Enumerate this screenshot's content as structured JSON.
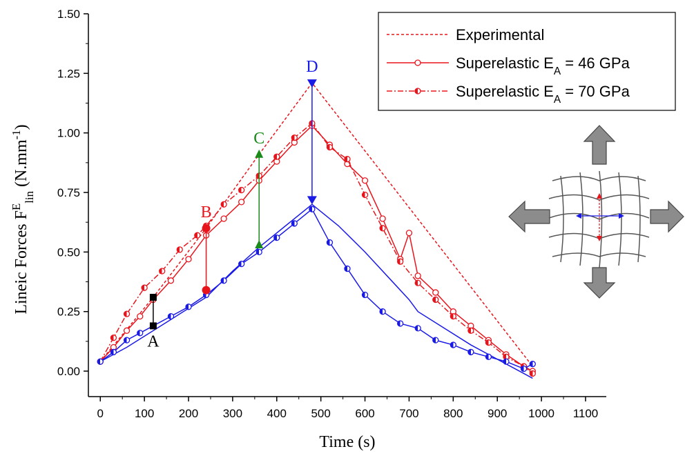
{
  "chart_data": {
    "type": "line",
    "xlabel": "Time (s)",
    "ylabel": "Lineic Forces F^{E}_{lin} (N.mm^{-1})",
    "xlim": [
      -27,
      1147
    ],
    "ylim": [
      -0.107,
      1.5
    ],
    "xticks": [
      0,
      100,
      200,
      300,
      400,
      500,
      600,
      700,
      800,
      900,
      1000,
      1100
    ],
    "yticks": [
      {
        "value": 0,
        "label": "0.00"
      },
      {
        "value": 0.25,
        "label": "0.25"
      },
      {
        "value": 0.5,
        "label": "0.50"
      },
      {
        "value": 0.75,
        "label": "0.75"
      },
      {
        "value": 1,
        "label": "1.00"
      },
      {
        "value": 1.25,
        "label": "1.25"
      },
      {
        "value": 1.5,
        "label": "1.50"
      }
    ],
    "legend": "upper right",
    "series": [
      {
        "name": "Experimental",
        "color": "#e8141c",
        "dash": "dotted",
        "marker": "none",
        "x": [
          0,
          120,
          240,
          360,
          480,
          980
        ],
        "values": [
          0.04,
          0.31,
          0.6,
          0.91,
          1.21,
          0.02
        ]
      },
      {
        "name": "Superelastic E_{A} = 46 GPa",
        "color": "#e8141c",
        "dash": "solid",
        "marker": "open",
        "x": [
          0,
          30,
          60,
          90,
          120,
          160,
          200,
          240,
          280,
          320,
          360,
          400,
          440,
          480,
          520,
          560,
          600,
          640,
          680,
          700,
          720,
          760,
          800,
          840,
          880,
          920,
          960,
          980
        ],
        "values": [
          0.04,
          0.1,
          0.17,
          0.23,
          0.3,
          0.38,
          0.47,
          0.57,
          0.64,
          0.71,
          0.8,
          0.88,
          0.96,
          1.03,
          0.95,
          0.87,
          0.8,
          0.64,
          0.47,
          0.58,
          0.4,
          0.33,
          0.25,
          0.19,
          0.13,
          0.07,
          0.02,
          0.0
        ]
      },
      {
        "name": "Superelastic E_{A} = 70 GPa",
        "color": "#e8141c",
        "dash": "dashdot",
        "marker": "half",
        "x": [
          0,
          30,
          60,
          100,
          140,
          180,
          220,
          240,
          280,
          320,
          360,
          400,
          440,
          480,
          520,
          560,
          600,
          640,
          680,
          720,
          760,
          800,
          840,
          880,
          920,
          960,
          980
        ],
        "values": [
          0.04,
          0.14,
          0.24,
          0.35,
          0.42,
          0.51,
          0.57,
          0.61,
          0.7,
          0.76,
          0.82,
          0.9,
          0.98,
          1.04,
          0.94,
          0.89,
          0.74,
          0.6,
          0.46,
          0.37,
          0.3,
          0.23,
          0.17,
          0.12,
          0.06,
          0.02,
          -0.01
        ]
      },
      {
        "color": "#1a1ae6",
        "dash": "solid",
        "marker": "none",
        "x": [
          0,
          60,
          120,
          180,
          240,
          300,
          360,
          420,
          480,
          540,
          600,
          660,
          700,
          720,
          780,
          840,
          900,
          940,
          980
        ],
        "values": [
          0.04,
          0.1,
          0.17,
          0.24,
          0.31,
          0.42,
          0.52,
          0.61,
          0.7,
          0.61,
          0.5,
          0.38,
          0.3,
          0.25,
          0.18,
          0.11,
          0.05,
          0.01,
          -0.03
        ]
      },
      {
        "color": "#1a1ae6",
        "dash": "solid",
        "marker": "half",
        "x": [
          0,
          30,
          60,
          90,
          120,
          160,
          200,
          240,
          280,
          320,
          360,
          400,
          440,
          480,
          520,
          560,
          600,
          640,
          680,
          720,
          760,
          800,
          840,
          880,
          920,
          960,
          980
        ],
        "values": [
          0.04,
          0.08,
          0.13,
          0.16,
          0.19,
          0.23,
          0.27,
          0.32,
          0.38,
          0.45,
          0.5,
          0.56,
          0.62,
          0.68,
          0.54,
          0.43,
          0.32,
          0.25,
          0.2,
          0.18,
          0.13,
          0.11,
          0.08,
          0.06,
          0.04,
          0.01,
          0.03
        ]
      }
    ],
    "annotations": [
      {
        "text": "A",
        "x": 120,
        "y": [
          0.19,
          0.31
        ],
        "color": "#000000",
        "marker": "square",
        "label_at": "below"
      },
      {
        "text": "B",
        "x": 240,
        "y": [
          0.34,
          0.6
        ],
        "color": "#e8141c",
        "marker": "circle",
        "label_at": "above"
      },
      {
        "text": "C",
        "x": 360,
        "y": [
          0.53,
          0.91
        ],
        "color": "#1a8a1a",
        "marker": "triangle-up",
        "label_at": "above"
      },
      {
        "text": "D",
        "x": 480,
        "y": [
          0.72,
          1.21
        ],
        "color": "#1a1ae6",
        "marker": "triangle-down",
        "label_at": "above"
      }
    ]
  }
}
